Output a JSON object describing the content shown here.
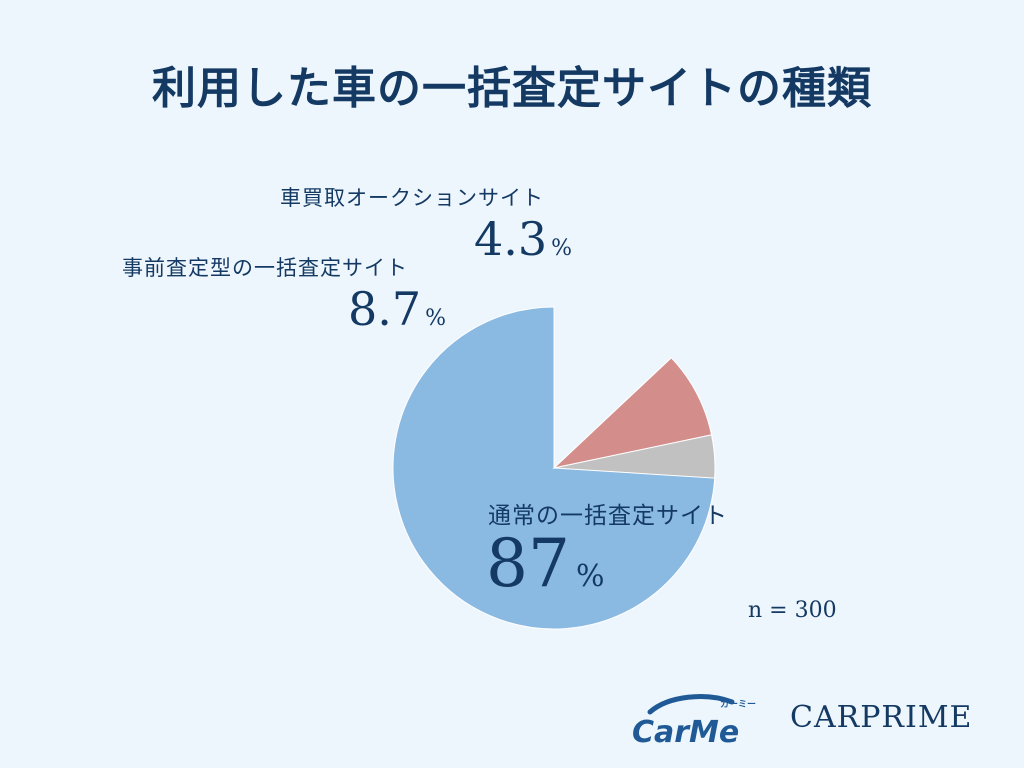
{
  "title": "利用した車の一括査定サイトの種類",
  "chart_data": {
    "type": "pie",
    "categories": [
      "通常の一括査定サイト",
      "事前査定型の一括査定サイト",
      "車買取オークションサイト"
    ],
    "values": [
      87,
      8.7,
      4.3
    ],
    "value_labels": [
      "87",
      "8.7",
      "4.3"
    ],
    "unit": "%",
    "colors": [
      "#8AB9E2",
      "#D38D8B",
      "#C2C1C1"
    ],
    "start": "12 o'clock",
    "direction": "clockwise",
    "sample_size": "n = 300"
  },
  "logos": {
    "carme_text": "CarMe",
    "carme_sub": "カーミー",
    "carprime_text": "CARPRIME"
  }
}
